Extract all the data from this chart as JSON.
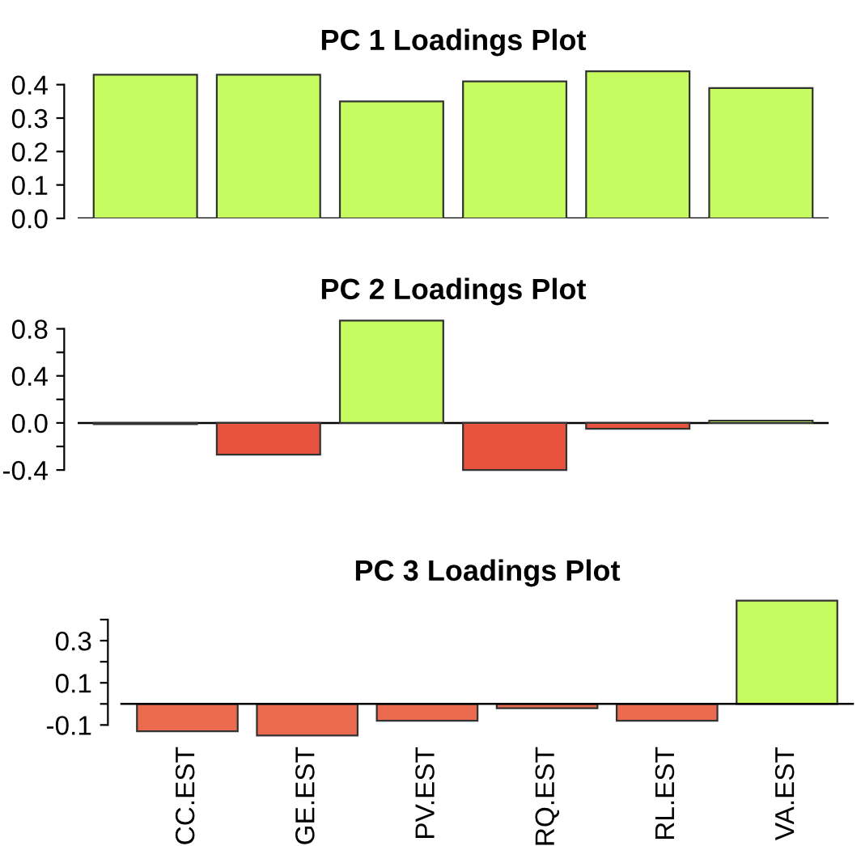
{
  "chart_data": [
    {
      "type": "bar",
      "title": "PC 1 Loadings Plot",
      "categories": [
        null,
        null,
        null,
        null,
        null,
        null
      ],
      "values": [
        0.43,
        0.43,
        0.35,
        0.41,
        0.44,
        0.39
      ],
      "colors": [
        "#c6fc5f",
        "#c6fc5f",
        "#c6fc5f",
        "#c6fc5f",
        "#c6fc5f",
        "#c6fc5f"
      ],
      "ylim": [
        0,
        0.45
      ],
      "yticks": [
        {
          "value": 0,
          "label": "0.0"
        },
        0.1,
        0.2,
        0.3,
        0.4
      ],
      "ref_lines": [
        {
          "axis": "y",
          "value": 0,
          "color": "#000000"
        }
      ],
      "grid": false,
      "tick_labels": "y"
    },
    {
      "type": "bar",
      "title": "PC 2 Loadings Plot",
      "categories": [
        null,
        null,
        null,
        null,
        null,
        null
      ],
      "values": [
        -0.01,
        -0.27,
        0.87,
        -0.4,
        -0.05,
        0.02
      ],
      "colors": [
        "#e8533f",
        "#e8533f",
        "#c6fc5f",
        "#e8533f",
        "#e8533f",
        "#c6fc5f"
      ],
      "ylim": [
        -0.42,
        0.9
      ],
      "yticks": [
        -0.4,
        {
          "value": -0.2,
          "label": null
        },
        {
          "value": 0,
          "label": "0.0"
        },
        {
          "value": 0.2,
          "label": null
        },
        0.4,
        {
          "value": 0.6,
          "label": null
        },
        0.8
      ],
      "ref_lines": [
        {
          "axis": "y",
          "value": 0,
          "color": "#000000"
        }
      ],
      "grid": false,
      "tick_labels": "y"
    },
    {
      "type": "bar",
      "title": "PC 3 Loadings Plot",
      "categories": [
        "CC.EST",
        "GE.EST",
        "PV.EST",
        "RQ.EST",
        "RL.EST",
        "VA.EST"
      ],
      "values": [
        -0.13,
        -0.15,
        -0.08,
        -0.02,
        -0.08,
        0.49
      ],
      "colors": [
        "#ea6b50",
        "#ea6b50",
        "#ea6b50",
        "#ea6b50",
        "#ea6b50",
        "#c6fc5f"
      ],
      "ylim": [
        -0.16,
        0.5
      ],
      "yticks": [
        -0.1,
        {
          "value": 0.0,
          "label": null
        },
        0.1,
        {
          "value": 0.2,
          "label": null
        },
        0.3,
        {
          "value": 0.4,
          "label": null
        }
      ],
      "grid": false
    }
  ]
}
